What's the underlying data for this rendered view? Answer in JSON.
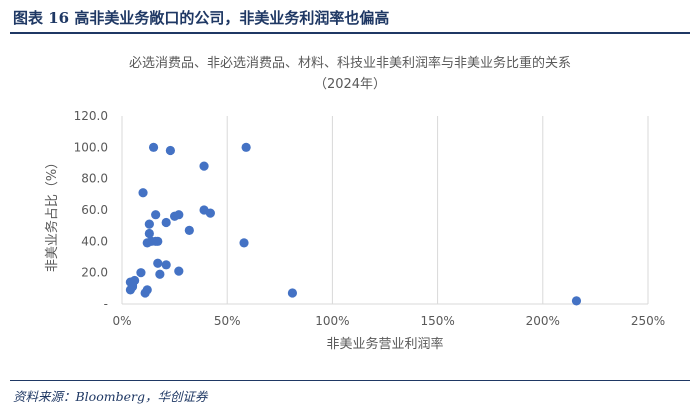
{
  "header": {
    "figure_title": "图表 16   高非美业务敞口的公司，非美业务利润率也偏高"
  },
  "footer": {
    "source": "资料来源：Bloomberg，华创证券"
  },
  "chart_data": {
    "type": "scatter",
    "title": "必选消费品、非必选消费品、材料、科技业非美利润率与非美业务比重的关系",
    "subtitle": "（2024年）",
    "xlabel": "非美业务营业利润率",
    "ylabel": "非美业务占比（%）",
    "xlim": [
      0,
      2.5
    ],
    "ylim": [
      0,
      120
    ],
    "x_ticks": [
      "0%",
      "50%",
      "100%",
      "150%",
      "200%",
      "250%"
    ],
    "y_ticks": [
      "-",
      "20.0",
      "40.0",
      "60.0",
      "80.0",
      "100.0",
      "120.0"
    ],
    "grid": "vertical",
    "marker_color": "#4472c4",
    "points": [
      {
        "x": 0.04,
        "y": 9
      },
      {
        "x": 0.05,
        "y": 11
      },
      {
        "x": 0.04,
        "y": 14
      },
      {
        "x": 0.06,
        "y": 15
      },
      {
        "x": 0.05,
        "y": 12
      },
      {
        "x": 0.09,
        "y": 20
      },
      {
        "x": 0.11,
        "y": 7
      },
      {
        "x": 0.12,
        "y": 9
      },
      {
        "x": 0.1,
        "y": 71
      },
      {
        "x": 0.12,
        "y": 39
      },
      {
        "x": 0.13,
        "y": 45
      },
      {
        "x": 0.13,
        "y": 51
      },
      {
        "x": 0.14,
        "y": 40
      },
      {
        "x": 0.15,
        "y": 100
      },
      {
        "x": 0.16,
        "y": 57
      },
      {
        "x": 0.16,
        "y": 40
      },
      {
        "x": 0.17,
        "y": 40
      },
      {
        "x": 0.17,
        "y": 26
      },
      {
        "x": 0.18,
        "y": 19
      },
      {
        "x": 0.21,
        "y": 52
      },
      {
        "x": 0.21,
        "y": 25
      },
      {
        "x": 0.23,
        "y": 98
      },
      {
        "x": 0.25,
        "y": 56
      },
      {
        "x": 0.27,
        "y": 57
      },
      {
        "x": 0.27,
        "y": 21
      },
      {
        "x": 0.32,
        "y": 47
      },
      {
        "x": 0.39,
        "y": 88
      },
      {
        "x": 0.39,
        "y": 60
      },
      {
        "x": 0.42,
        "y": 58
      },
      {
        "x": 0.58,
        "y": 39
      },
      {
        "x": 0.59,
        "y": 100
      },
      {
        "x": 0.81,
        "y": 7
      },
      {
        "x": 2.16,
        "y": 2
      }
    ]
  }
}
